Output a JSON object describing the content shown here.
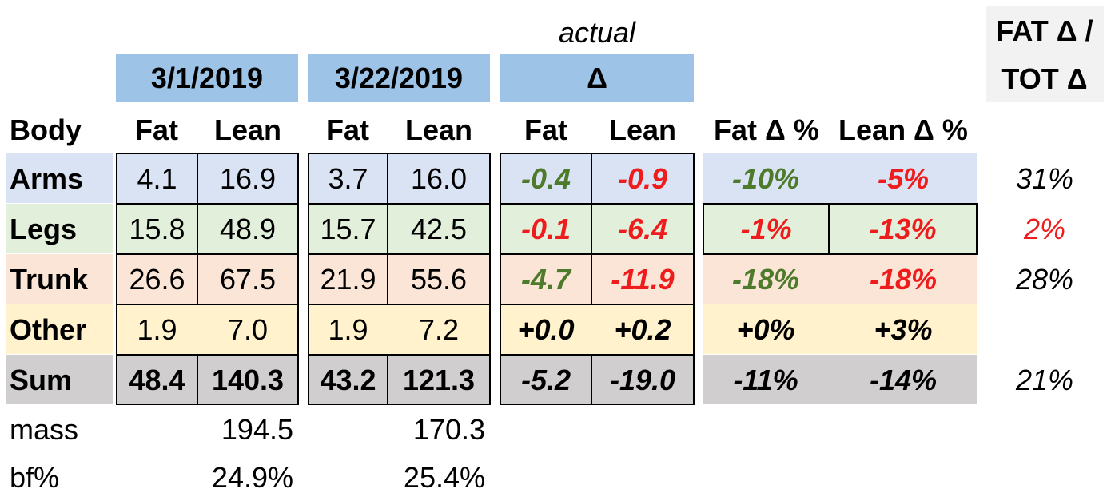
{
  "header": {
    "actual": "actual",
    "date1": "3/1/2019",
    "date2": "3/22/2019",
    "delta": "Δ",
    "fat_tot_line1": "FAT Δ /",
    "fat_tot_line2": "TOT Δ"
  },
  "columns": {
    "body": "Body",
    "fat1": "Fat",
    "lean1": "Lean",
    "fat2": "Fat",
    "lean2": "Lean",
    "fatd": "Fat",
    "leand": "Lean",
    "fatpct": "Fat Δ %",
    "leanpct": "Lean Δ %"
  },
  "rows": [
    {
      "label": "Arms",
      "fat1": "4.1",
      "lean1": "16.9",
      "fat2": "3.7",
      "lean2": "16.0",
      "fatd": "-0.4",
      "leand": "-0.9",
      "fatpct": "-10%",
      "leanpct": "-5%",
      "ratio": "31%"
    },
    {
      "label": "Legs",
      "fat1": "15.8",
      "lean1": "48.9",
      "fat2": "15.7",
      "lean2": "42.5",
      "fatd": "-0.1",
      "leand": "-6.4",
      "fatpct": "-1%",
      "leanpct": "-13%",
      "ratio": "2%"
    },
    {
      "label": "Trunk",
      "fat1": "26.6",
      "lean1": "67.5",
      "fat2": "21.9",
      "lean2": "55.6",
      "fatd": "-4.7",
      "leand": "-11.9",
      "fatpct": "-18%",
      "leanpct": "-18%",
      "ratio": "28%"
    },
    {
      "label": "Other",
      "fat1": "1.9",
      "lean1": "7.0",
      "fat2": "1.9",
      "lean2": "7.2",
      "fatd": "+0.0",
      "leand": "+0.2",
      "fatpct": "+0%",
      "leanpct": "+3%",
      "ratio": ""
    },
    {
      "label": "Sum",
      "fat1": "48.4",
      "lean1": "140.3",
      "fat2": "43.2",
      "lean2": "121.3",
      "fatd": "-5.2",
      "leand": "-19.0",
      "fatpct": "-11%",
      "leanpct": "-14%",
      "ratio": "21%"
    }
  ],
  "footer": {
    "mass_label": "mass",
    "mass1": "194.5",
    "mass2": "170.3",
    "bf_label": "bf%",
    "bf1": "24.9%",
    "bf2": "25.4%"
  },
  "colors": {
    "header_blue": "#9dc3e6",
    "arms_bg": "#dae3f3",
    "legs_bg": "#e2efda",
    "trunk_bg": "#fbe5d6",
    "other_bg": "#fff2cc",
    "sum_bg": "#d0cece",
    "fat_tot_bg": "#f2f2f2",
    "green_text": "#4e7a2b",
    "red_text": "#ee1c1c"
  }
}
